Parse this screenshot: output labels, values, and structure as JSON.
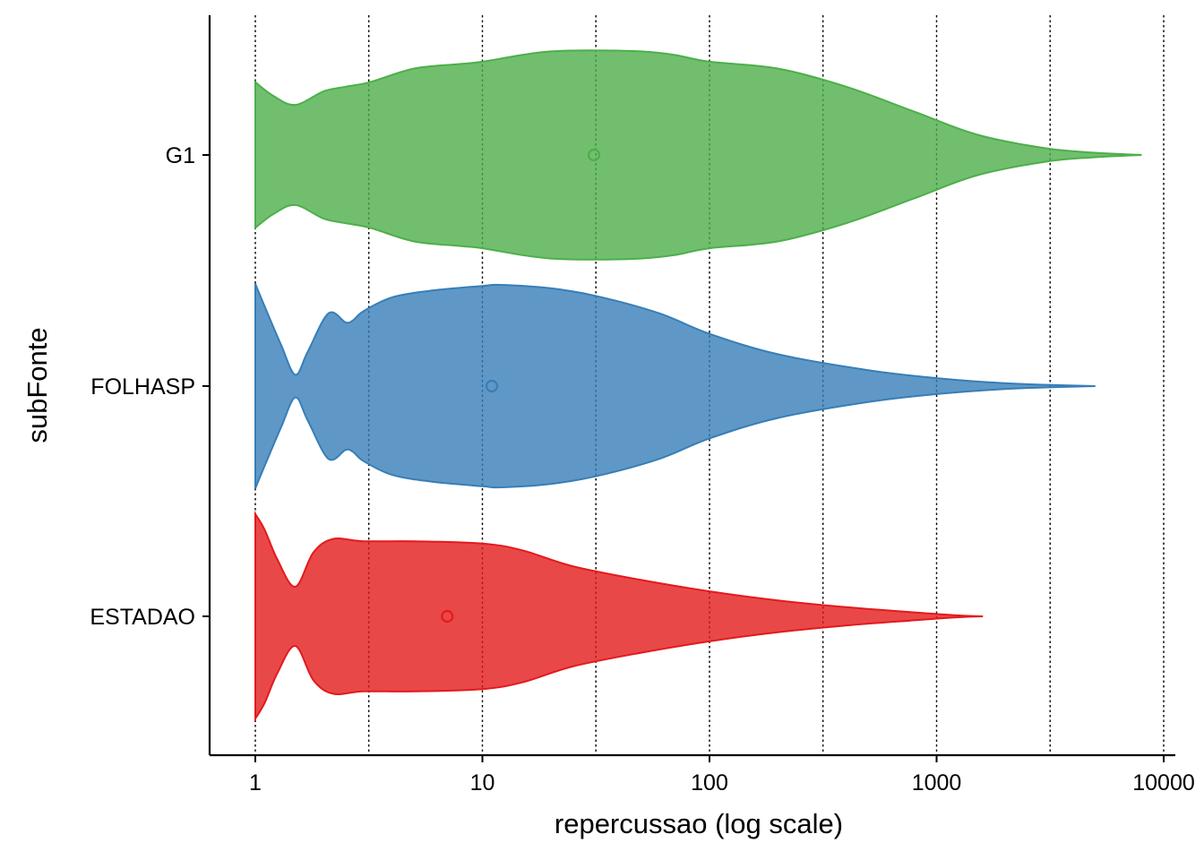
{
  "chart_data": {
    "type": "violin",
    "orientation": "horizontal",
    "xlabel": "repercussao (log scale)",
    "ylabel": "subFonte",
    "x_scale": "log10",
    "xlim": [
      0.66,
      12000
    ],
    "x_ticks": [
      1,
      10,
      100,
      1000,
      10000
    ],
    "x_tick_labels": [
      "1",
      "10",
      "100",
      "1000",
      "10000"
    ],
    "gridlines": [
      1,
      3.16,
      10,
      31.6,
      100,
      316,
      1000,
      3162,
      10000
    ],
    "categories": [
      "G1",
      "FOLHASP",
      "ESTADAO"
    ],
    "series": [
      {
        "category": "G1",
        "color": "#4DAF4A",
        "median_marker": 31,
        "density_profile": [
          [
            1,
            0.64
          ],
          [
            1.2,
            0.52
          ],
          [
            1.5,
            0.44
          ],
          [
            2.0,
            0.56
          ],
          [
            2.5,
            0.6
          ],
          [
            3.2,
            0.64
          ],
          [
            5,
            0.76
          ],
          [
            8,
            0.8
          ],
          [
            10,
            0.82
          ],
          [
            15,
            0.88
          ],
          [
            20,
            0.91
          ],
          [
            30,
            0.92
          ],
          [
            50,
            0.91
          ],
          [
            70,
            0.88
          ],
          [
            100,
            0.82
          ],
          [
            200,
            0.76
          ],
          [
            400,
            0.6
          ],
          [
            800,
            0.38
          ],
          [
            1500,
            0.18
          ],
          [
            3000,
            0.06
          ],
          [
            5000,
            0.02
          ],
          [
            8000,
            0.0
          ]
        ]
      },
      {
        "category": "FOLHASP",
        "color": "#377EB8",
        "median_marker": 11,
        "density_profile": [
          [
            1,
            0.9
          ],
          [
            1.1,
            0.7
          ],
          [
            1.3,
            0.36
          ],
          [
            1.5,
            0.1
          ],
          [
            1.7,
            0.3
          ],
          [
            2.1,
            0.64
          ],
          [
            2.5,
            0.56
          ],
          [
            2.7,
            0.58
          ],
          [
            3,
            0.66
          ],
          [
            4,
            0.78
          ],
          [
            6,
            0.84
          ],
          [
            10,
            0.88
          ],
          [
            12,
            0.89
          ],
          [
            20,
            0.86
          ],
          [
            32,
            0.79
          ],
          [
            60,
            0.64
          ],
          [
            100,
            0.46
          ],
          [
            200,
            0.28
          ],
          [
            500,
            0.14
          ],
          [
            1000,
            0.07
          ],
          [
            2000,
            0.025
          ],
          [
            3500,
            0.008
          ],
          [
            5000,
            0.0
          ]
        ]
      },
      {
        "category": "ESTADAO",
        "color": "#E41A1C",
        "median_marker": 7,
        "density_profile": [
          [
            1,
            0.9
          ],
          [
            1.1,
            0.76
          ],
          [
            1.25,
            0.5
          ],
          [
            1.5,
            0.26
          ],
          [
            1.8,
            0.56
          ],
          [
            2.2,
            0.68
          ],
          [
            3,
            0.66
          ],
          [
            5,
            0.66
          ],
          [
            10,
            0.64
          ],
          [
            15,
            0.58
          ],
          [
            25,
            0.44
          ],
          [
            50,
            0.32
          ],
          [
            100,
            0.22
          ],
          [
            200,
            0.14
          ],
          [
            400,
            0.08
          ],
          [
            800,
            0.035
          ],
          [
            1200,
            0.01
          ],
          [
            1600,
            0.0
          ]
        ]
      }
    ]
  }
}
